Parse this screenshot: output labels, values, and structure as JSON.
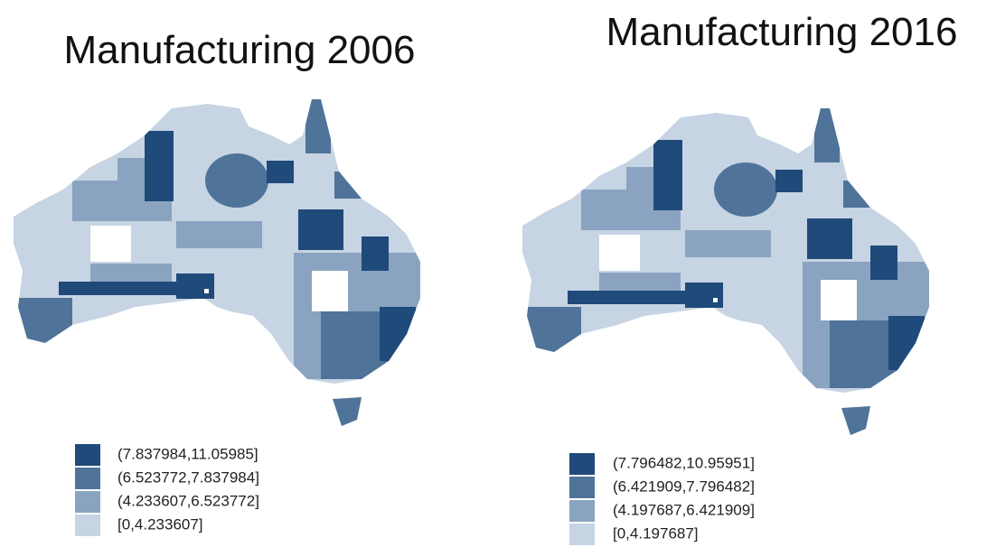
{
  "maps": [
    {
      "title": "Manufacturing 2006",
      "legend": [
        {
          "label": "(7.837984,11.05985]",
          "color": "#1f4a7a"
        },
        {
          "label": "(6.523772,7.837984]",
          "color": "#4f7399"
        },
        {
          "label": "(4.233607,6.523772]",
          "color": "#8aa3c0"
        },
        {
          "label": "[0,4.233607]",
          "color": "#c6d4e3"
        }
      ]
    },
    {
      "title": "Manufacturing 2016",
      "legend": [
        {
          "label": "(7.796482,10.95951]",
          "color": "#1f4a7a"
        },
        {
          "label": "(6.421909,7.796482]",
          "color": "#4f7399"
        },
        {
          "label": "(4.197687,6.421909]",
          "color": "#8aa3c0"
        },
        {
          "label": "[0,4.197687]",
          "color": "#c6d4e3"
        }
      ]
    }
  ]
}
